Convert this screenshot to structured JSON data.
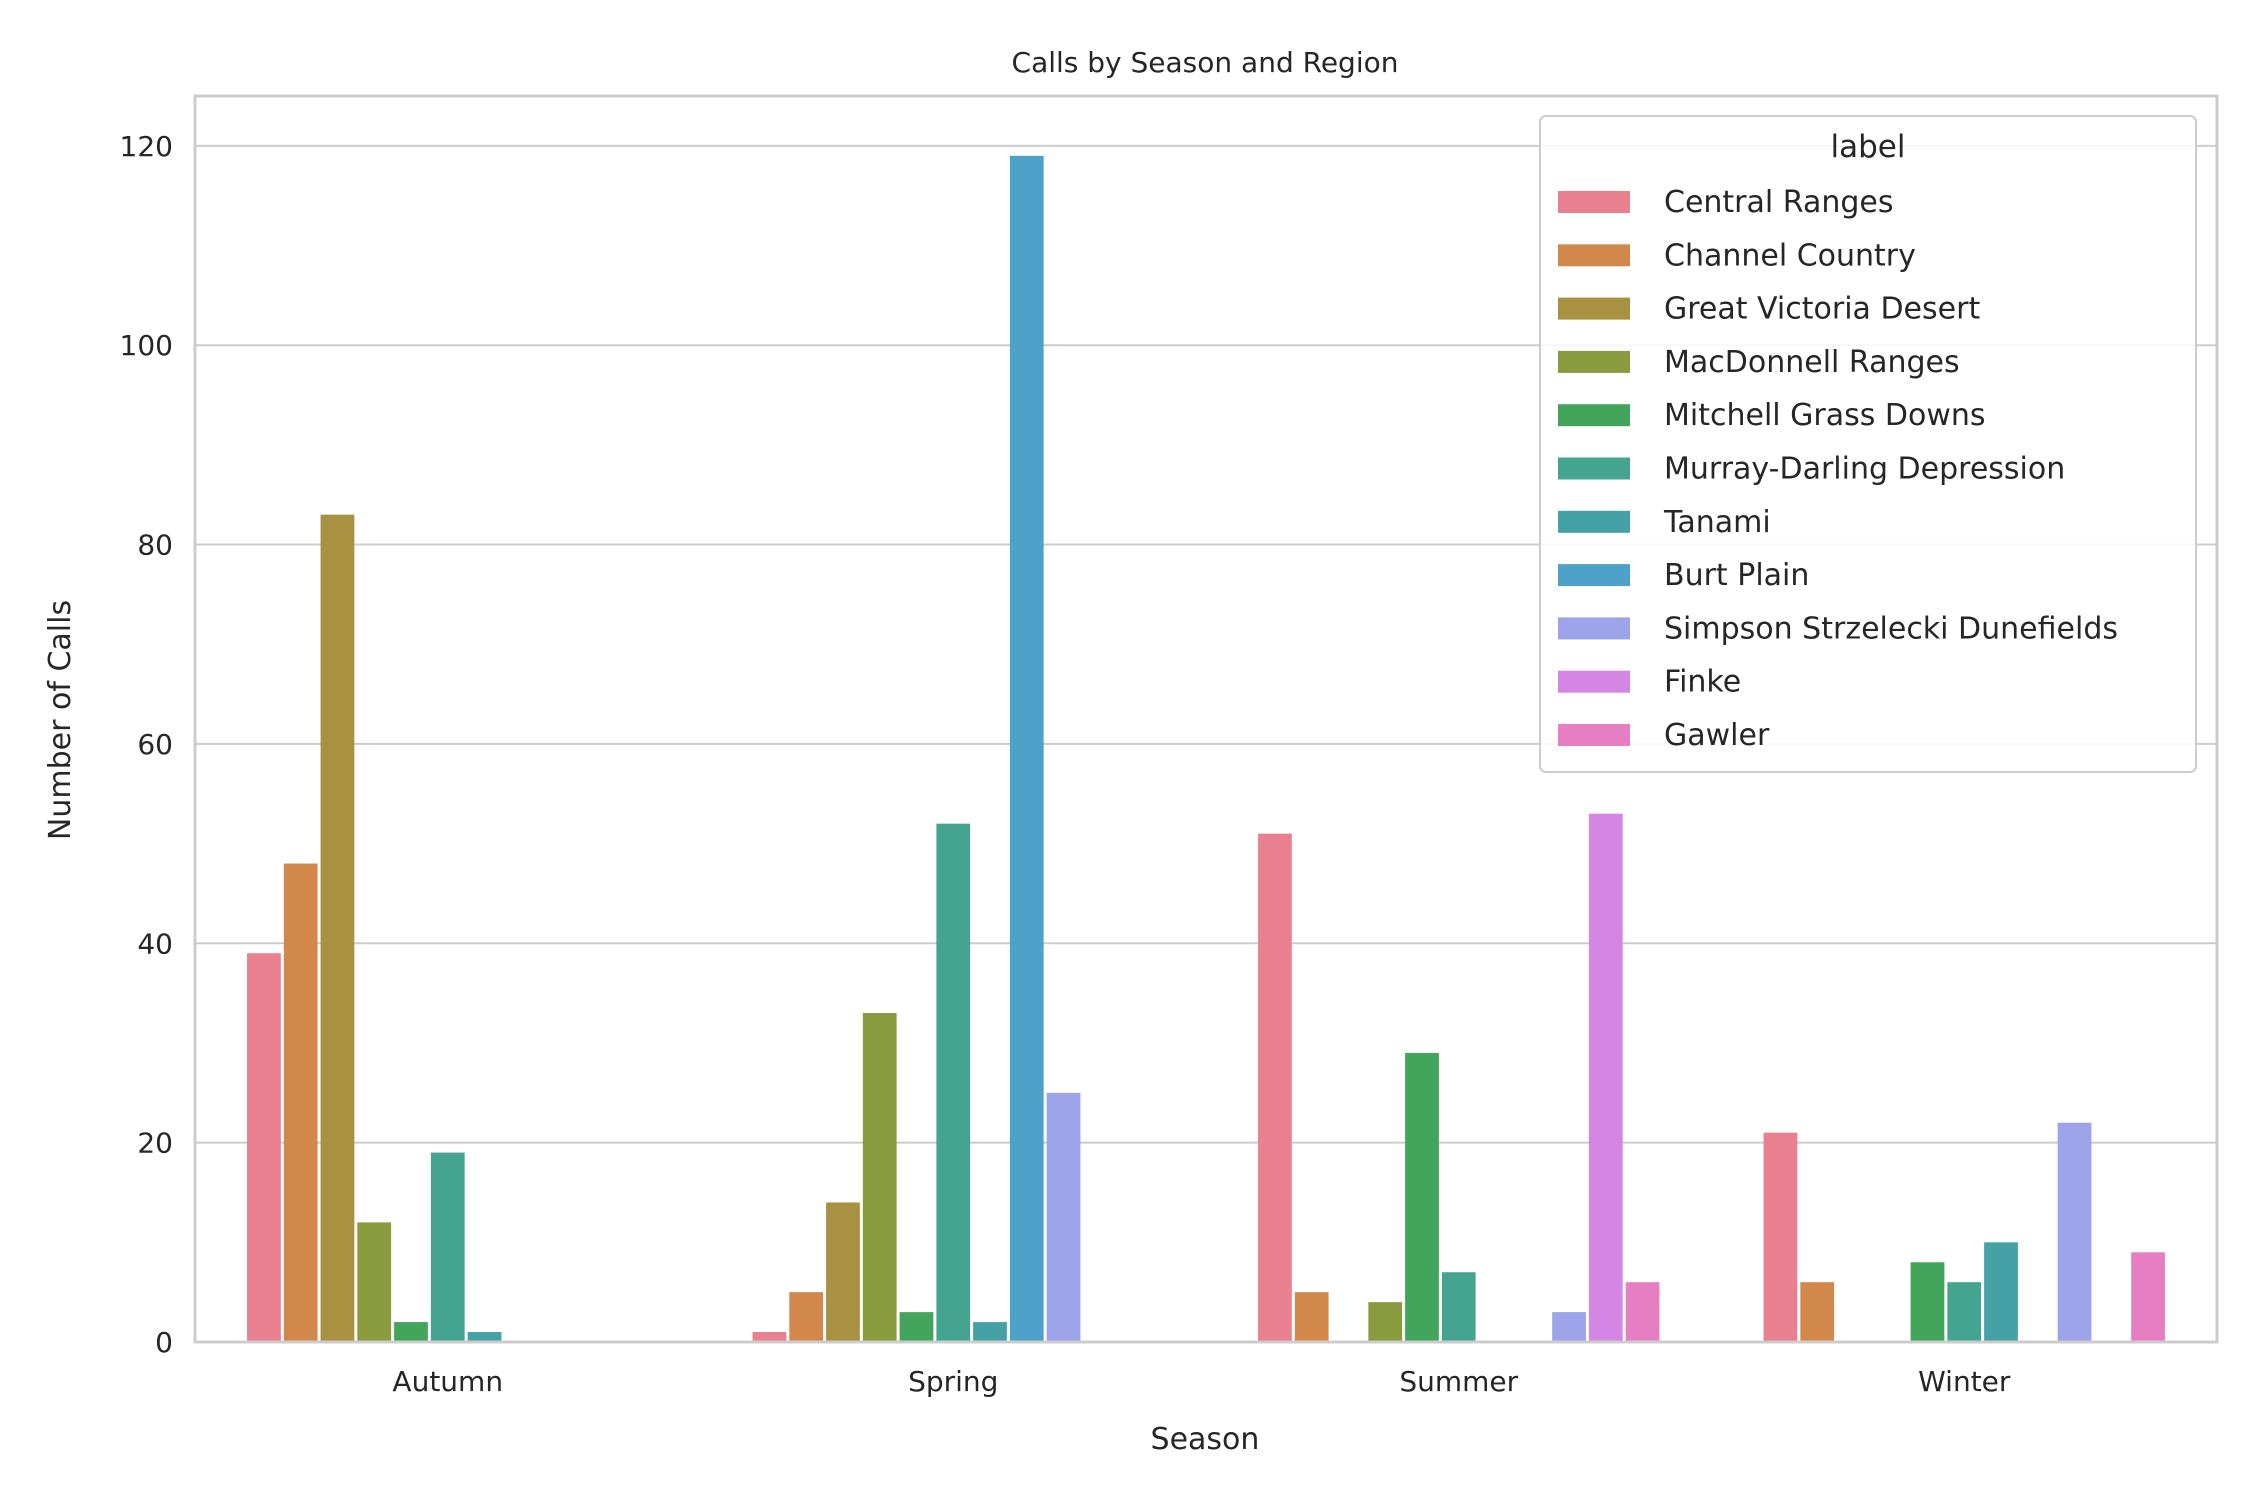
{
  "chart_data": {
    "type": "bar",
    "title": "Calls by Season and Region",
    "xlabel": "Season",
    "ylabel": "Number of Calls",
    "ylim": [
      0,
      125
    ],
    "yticks": [
      0,
      20,
      40,
      60,
      80,
      100,
      120
    ],
    "grid": true,
    "legend_title": "label",
    "legend_placement": "top-right",
    "categories": [
      "Autumn",
      "Spring",
      "Summer",
      "Winter"
    ],
    "series": [
      {
        "name": "Central Ranges",
        "color": "#e8808f",
        "values": [
          39,
          1,
          51,
          21
        ]
      },
      {
        "name": "Channel Country",
        "color": "#d3884b",
        "values": [
          48,
          5,
          5,
          6
        ]
      },
      {
        "name": "Great Victoria Desert",
        "color": "#a99142",
        "values": [
          83,
          14,
          0,
          0
        ]
      },
      {
        "name": "MacDonnell Ranges",
        "color": "#8a9a3f",
        "values": [
          12,
          33,
          4,
          0
        ]
      },
      {
        "name": "Mitchell Grass Downs",
        "color": "#42a55b",
        "values": [
          2,
          3,
          29,
          8
        ]
      },
      {
        "name": "Murray-Darling Depression",
        "color": "#45a48f",
        "values": [
          19,
          52,
          7,
          6
        ]
      },
      {
        "name": "Tanami",
        "color": "#44a2a7",
        "values": [
          1,
          2,
          0,
          10
        ]
      },
      {
        "name": "Burt Plain",
        "color": "#4ea2c9",
        "values": [
          0,
          119,
          0,
          0
        ]
      },
      {
        "name": "Simpson Strzelecki Dunefields",
        "color": "#9da4e9",
        "values": [
          0,
          25,
          3,
          22
        ]
      },
      {
        "name": "Finke",
        "color": "#d585e4",
        "values": [
          0,
          0,
          53,
          0
        ]
      },
      {
        "name": "Gawler",
        "color": "#e67fc2",
        "values": [
          0,
          0,
          6,
          9
        ]
      }
    ]
  }
}
